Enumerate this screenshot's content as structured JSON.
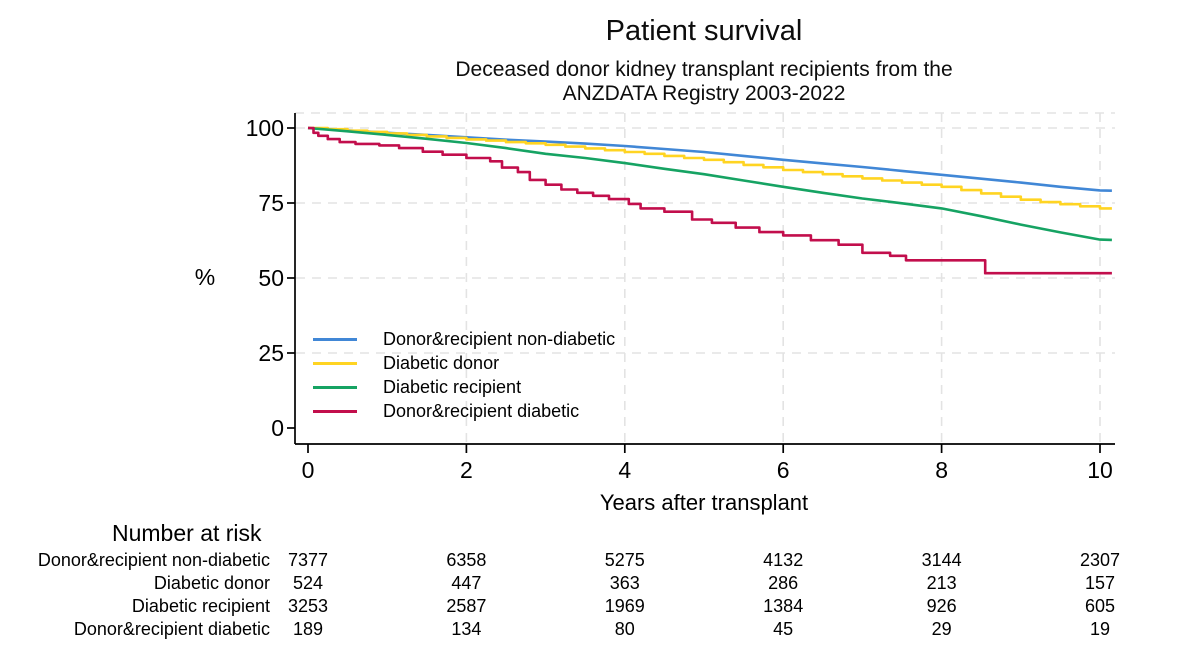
{
  "chart_data": {
    "type": "line",
    "title": "Patient survival",
    "subtitle_lines": [
      "Deceased donor kidney transplant recipients from the",
      "ANZDATA Registry 2003-2022"
    ],
    "xlabel": "Years after transplant",
    "ylabel": "%",
    "xlim": [
      0,
      10
    ],
    "ylim": [
      0,
      100
    ],
    "xticks": [
      0,
      2,
      4,
      6,
      8,
      10
    ],
    "yticks": [
      0,
      25,
      50,
      75,
      100
    ],
    "grid": "dashed-light-gray",
    "legend_position": "inside-lower-left",
    "series": [
      {
        "name": "Donor&recipient non-diabetic",
        "color": "#4187D6",
        "style": "line",
        "points": [
          [
            0,
            100
          ],
          [
            0.5,
            99.2
          ],
          [
            1,
            98.4
          ],
          [
            1.5,
            97.7
          ],
          [
            2,
            96.9
          ],
          [
            2.5,
            96.1
          ],
          [
            3,
            95.5
          ],
          [
            3.5,
            94.8
          ],
          [
            4,
            94.0
          ],
          [
            4.5,
            93.0
          ],
          [
            5,
            92.0
          ],
          [
            5.5,
            90.7
          ],
          [
            6,
            89.4
          ],
          [
            6.5,
            88.2
          ],
          [
            7,
            87.0
          ],
          [
            7.5,
            85.7
          ],
          [
            8,
            84.4
          ],
          [
            8.5,
            83.1
          ],
          [
            9,
            81.8
          ],
          [
            9.5,
            80.4
          ],
          [
            10,
            79.2
          ],
          [
            10.15,
            79.1
          ]
        ]
      },
      {
        "name": "Diabetic donor",
        "color": "#FFD422",
        "style": "step",
        "points": [
          [
            0,
            100
          ],
          [
            0.25,
            99.6
          ],
          [
            0.5,
            99.1
          ],
          [
            0.75,
            98.7
          ],
          [
            1,
            98.2
          ],
          [
            1.25,
            97.7
          ],
          [
            1.5,
            97.2
          ],
          [
            1.75,
            96.7
          ],
          [
            2,
            96.2
          ],
          [
            2.25,
            95.8
          ],
          [
            2.5,
            95.3
          ],
          [
            2.75,
            94.9
          ],
          [
            3,
            94.4
          ],
          [
            3.25,
            93.8
          ],
          [
            3.5,
            93.2
          ],
          [
            3.75,
            92.6
          ],
          [
            4,
            92.0
          ],
          [
            4.25,
            91.4
          ],
          [
            4.5,
            90.7
          ],
          [
            4.75,
            90.0
          ],
          [
            5,
            89.4
          ],
          [
            5.25,
            88.6
          ],
          [
            5.5,
            87.7
          ],
          [
            5.75,
            86.9
          ],
          [
            6,
            86.0
          ],
          [
            6.25,
            85.3
          ],
          [
            6.5,
            84.6
          ],
          [
            6.75,
            83.9
          ],
          [
            7,
            83.2
          ],
          [
            7.25,
            82.5
          ],
          [
            7.5,
            81.8
          ],
          [
            7.75,
            81.1
          ],
          [
            8,
            80.4
          ],
          [
            8.25,
            79.3
          ],
          [
            8.5,
            78.2
          ],
          [
            8.75,
            77.1
          ],
          [
            9,
            76.1
          ],
          [
            9.25,
            75.3
          ],
          [
            9.5,
            74.6
          ],
          [
            9.75,
            73.9
          ],
          [
            10,
            73.2
          ],
          [
            10.15,
            73.2
          ]
        ]
      },
      {
        "name": "Diabetic recipient",
        "color": "#16A363",
        "style": "line",
        "points": [
          [
            0,
            100
          ],
          [
            0.5,
            98.9
          ],
          [
            1,
            97.7
          ],
          [
            1.5,
            96.4
          ],
          [
            2,
            95.0
          ],
          [
            2.5,
            93.3
          ],
          [
            3,
            91.4
          ],
          [
            3.5,
            90.0
          ],
          [
            4,
            88.3
          ],
          [
            4.5,
            86.4
          ],
          [
            5,
            84.6
          ],
          [
            5.5,
            82.5
          ],
          [
            6,
            80.4
          ],
          [
            6.5,
            78.4
          ],
          [
            7,
            76.5
          ],
          [
            7.5,
            74.9
          ],
          [
            8,
            73.2
          ],
          [
            8.5,
            70.6
          ],
          [
            9,
            67.8
          ],
          [
            9.5,
            65.2
          ],
          [
            10,
            62.8
          ],
          [
            10.15,
            62.7
          ]
        ]
      },
      {
        "name": "Donor&recipient diabetic",
        "color": "#C20E4C",
        "style": "step",
        "points": [
          [
            0,
            100
          ],
          [
            0.07,
            98.4
          ],
          [
            0.13,
            97.4
          ],
          [
            0.25,
            96.3
          ],
          [
            0.4,
            95.3
          ],
          [
            0.6,
            94.7
          ],
          [
            0.9,
            94.2
          ],
          [
            1.15,
            93.3
          ],
          [
            1.45,
            92.1
          ],
          [
            1.7,
            91.1
          ],
          [
            2.0,
            90.0
          ],
          [
            2.3,
            88.9
          ],
          [
            2.45,
            86.8
          ],
          [
            2.65,
            85.3
          ],
          [
            2.8,
            82.7
          ],
          [
            3.0,
            81.1
          ],
          [
            3.2,
            79.5
          ],
          [
            3.4,
            78.4
          ],
          [
            3.6,
            77.4
          ],
          [
            3.8,
            76.3
          ],
          [
            4.05,
            74.7
          ],
          [
            4.2,
            73.2
          ],
          [
            4.5,
            72.1
          ],
          [
            4.85,
            69.5
          ],
          [
            5.1,
            68.4
          ],
          [
            5.4,
            66.8
          ],
          [
            5.7,
            65.3
          ],
          [
            6.0,
            64.2
          ],
          [
            6.35,
            62.6
          ],
          [
            6.7,
            61.1
          ],
          [
            7.0,
            58.4
          ],
          [
            7.35,
            57.4
          ],
          [
            7.55,
            55.9
          ],
          [
            8.55,
            51.6
          ],
          [
            10.15,
            51.6
          ]
        ]
      }
    ]
  },
  "risk_table": {
    "header": "Number at risk",
    "years": [
      0,
      2,
      4,
      6,
      8,
      10
    ],
    "rows": [
      {
        "label": "Donor&recipient non-diabetic",
        "values": [
          "7377",
          "6358",
          "5275",
          "4132",
          "3144",
          "2307"
        ]
      },
      {
        "label": "Diabetic donor",
        "values": [
          "524",
          "447",
          "363",
          "286",
          "213",
          "157"
        ]
      },
      {
        "label": "Diabetic recipient",
        "values": [
          "3253",
          "2587",
          "1969",
          "1384",
          "926",
          "605"
        ]
      },
      {
        "label": "Donor&recipient diabetic",
        "values": [
          "189",
          "134",
          "80",
          "45",
          "29",
          "19"
        ]
      }
    ]
  }
}
